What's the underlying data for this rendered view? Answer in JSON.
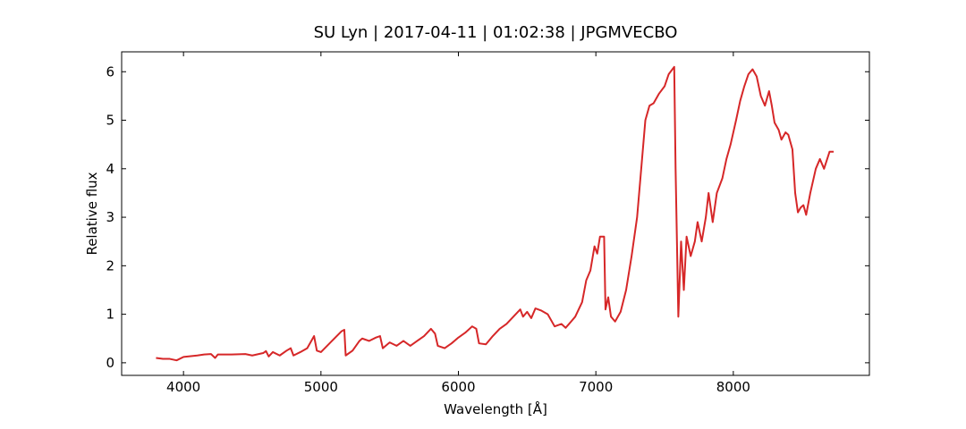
{
  "chart_data": {
    "type": "line",
    "title": "SU Lyn | 2017-04-11 | 01:02:38 | JPGMVECBO",
    "x_label": "Wavelength [Å]",
    "y_label": "Relative flux",
    "xlim": [
      3550,
      8990
    ],
    "ylim": [
      -0.26,
      6.41
    ],
    "xticks": [
      4000,
      5000,
      6000,
      7000,
      8000
    ],
    "yticks": [
      0,
      1,
      2,
      3,
      4,
      5,
      6
    ],
    "grid": false,
    "series": [
      {
        "color": "#d62728",
        "x": [
          3800,
          3850,
          3900,
          3950,
          4000,
          4100,
          4150,
          4200,
          4230,
          4250,
          4350,
          4450,
          4500,
          4580,
          4600,
          4620,
          4650,
          4700,
          4750,
          4780,
          4800,
          4850,
          4900,
          4950,
          4970,
          5000,
          5080,
          5150,
          5170,
          5180,
          5230,
          5280,
          5300,
          5350,
          5400,
          5430,
          5450,
          5500,
          5550,
          5600,
          5650,
          5700,
          5750,
          5800,
          5830,
          5850,
          5900,
          5950,
          6000,
          6050,
          6100,
          6130,
          6150,
          6200,
          6250,
          6300,
          6350,
          6400,
          6450,
          6470,
          6500,
          6530,
          6560,
          6600,
          6650,
          6700,
          6750,
          6780,
          6820,
          6850,
          6900,
          6930,
          6960,
          6990,
          7010,
          7030,
          7060,
          7070,
          7090,
          7110,
          7140,
          7180,
          7220,
          7260,
          7300,
          7330,
          7360,
          7390,
          7420,
          7460,
          7500,
          7530,
          7570,
          7580,
          7600,
          7620,
          7640,
          7660,
          7690,
          7720,
          7740,
          7770,
          7800,
          7820,
          7850,
          7880,
          7920,
          7950,
          7980,
          8020,
          8050,
          8080,
          8110,
          8140,
          8170,
          8200,
          8230,
          8260,
          8280,
          8300,
          8330,
          8350,
          8380,
          8400,
          8430,
          8450,
          8470,
          8490,
          8510,
          8530,
          8560,
          8600,
          8630,
          8660,
          8700,
          8730
        ],
        "values": [
          0.1,
          0.08,
          0.08,
          0.05,
          0.12,
          0.15,
          0.17,
          0.18,
          0.1,
          0.17,
          0.17,
          0.18,
          0.15,
          0.2,
          0.24,
          0.13,
          0.22,
          0.15,
          0.25,
          0.3,
          0.15,
          0.22,
          0.3,
          0.55,
          0.25,
          0.22,
          0.45,
          0.65,
          0.68,
          0.15,
          0.25,
          0.45,
          0.5,
          0.45,
          0.52,
          0.55,
          0.3,
          0.42,
          0.35,
          0.45,
          0.35,
          0.45,
          0.55,
          0.7,
          0.6,
          0.35,
          0.3,
          0.4,
          0.52,
          0.62,
          0.75,
          0.7,
          0.4,
          0.38,
          0.55,
          0.7,
          0.8,
          0.95,
          1.1,
          0.95,
          1.05,
          0.92,
          1.12,
          1.08,
          1.0,
          0.75,
          0.8,
          0.72,
          0.85,
          0.95,
          1.25,
          1.7,
          1.9,
          2.4,
          2.25,
          2.6,
          2.6,
          1.1,
          1.35,
          0.95,
          0.85,
          1.05,
          1.5,
          2.2,
          3.0,
          4.0,
          5.0,
          5.3,
          5.35,
          5.55,
          5.7,
          5.95,
          6.1,
          4.0,
          0.95,
          2.5,
          1.5,
          2.6,
          2.2,
          2.5,
          2.9,
          2.5,
          3.0,
          3.5,
          2.9,
          3.5,
          3.8,
          4.2,
          4.5,
          5.0,
          5.4,
          5.7,
          5.95,
          6.05,
          5.9,
          5.5,
          5.3,
          5.6,
          5.3,
          4.95,
          4.8,
          4.6,
          4.75,
          4.7,
          4.4,
          3.5,
          3.1,
          3.2,
          3.25,
          3.05,
          3.5,
          4.0,
          4.2,
          4.0,
          4.35,
          4.35
        ]
      }
    ]
  }
}
